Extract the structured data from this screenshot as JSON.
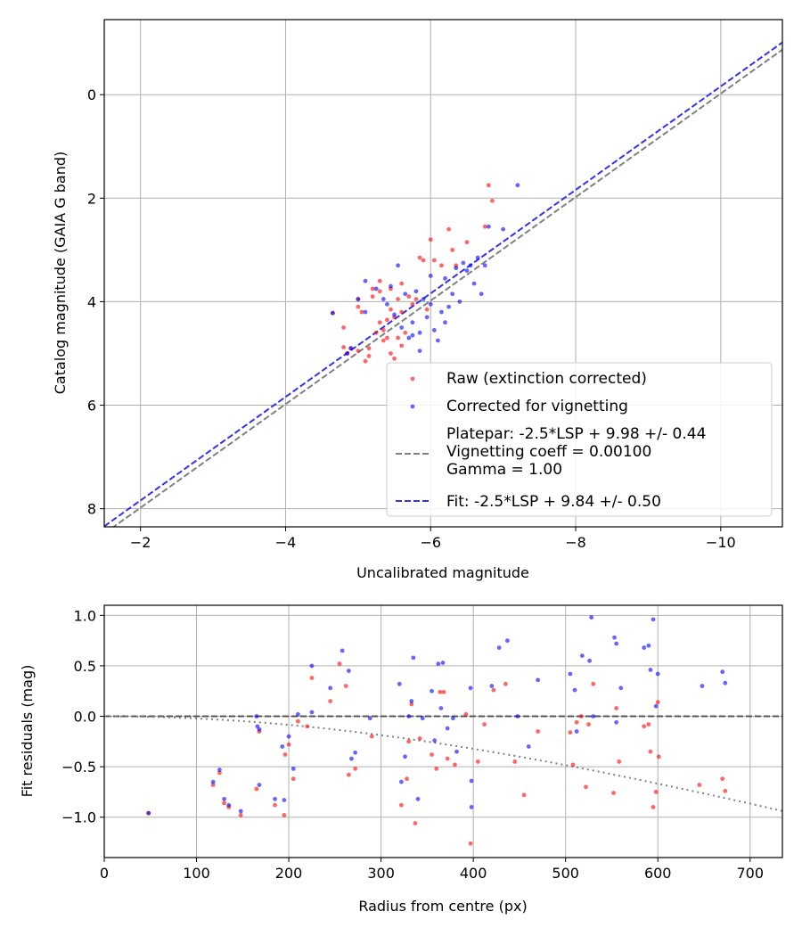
{
  "chart_data": [
    {
      "type": "scatter",
      "xlabel": "Uncalibrated magnitude",
      "ylabel": "Catalog magnitude (GAIA G band)",
      "xlim": [
        -1.5,
        -10.85
      ],
      "ylim": [
        8.35,
        -1.45
      ],
      "x_inverted": true,
      "y_inverted": true,
      "grid": true,
      "legend_position": "lower-right",
      "xticks": [
        -2,
        -4,
        -6,
        -8,
        -10
      ],
      "xtick_labels": [
        "−2",
        "−4",
        "−6",
        "−8",
        "−10"
      ],
      "yticks": [
        0,
        2,
        4,
        6,
        8
      ],
      "ytick_labels": [
        "0",
        "2",
        "4",
        "6",
        "8"
      ],
      "series": [
        {
          "name": "Raw (extinction corrected)",
          "kind": "points",
          "color": "#ff0000",
          "points": [
            [
              -4.65,
              4.22
            ],
            [
              -4.8,
              4.5
            ],
            [
              -4.8,
              4.88
            ],
            [
              -4.85,
              5.0
            ],
            [
              -4.9,
              4.9
            ],
            [
              -5.0,
              4.95
            ],
            [
              -5.0,
              4.1
            ],
            [
              -5.0,
              3.95
            ],
            [
              -5.05,
              4.2
            ],
            [
              -5.1,
              5.15
            ],
            [
              -5.15,
              5.05
            ],
            [
              -5.2,
              3.9
            ],
            [
              -5.2,
              3.75
            ],
            [
              -5.3,
              3.6
            ],
            [
              -5.3,
              3.8
            ],
            [
              -5.3,
              4.4
            ],
            [
              -5.35,
              4.55
            ],
            [
              -5.4,
              4.35
            ],
            [
              -5.4,
              4.7
            ],
            [
              -5.45,
              4.15
            ],
            [
              -5.45,
              3.75
            ],
            [
              -5.5,
              4.3
            ],
            [
              -5.55,
              3.95
            ],
            [
              -5.55,
              4.7
            ],
            [
              -5.6,
              4.2
            ],
            [
              -5.6,
              3.65
            ],
            [
              -5.65,
              4.6
            ],
            [
              -5.7,
              3.9
            ],
            [
              -5.75,
              4.05
            ],
            [
              -5.8,
              3.95
            ],
            [
              -5.85,
              3.15
            ],
            [
              -5.9,
              3.2
            ],
            [
              -6.0,
              2.8
            ],
            [
              -6.05,
              3.2
            ],
            [
              -6.15,
              3.3
            ],
            [
              -6.25,
              2.6
            ],
            [
              -6.3,
              3.0
            ],
            [
              -6.35,
              3.3
            ],
            [
              -6.5,
              2.85
            ],
            [
              -6.75,
              2.55
            ],
            [
              -6.8,
              1.75
            ],
            [
              -6.85,
              2.05
            ],
            [
              -5.25,
              4.6
            ],
            [
              -5.95,
              4.15
            ],
            [
              -5.15,
              4.9
            ],
            [
              -5.35,
              4.75
            ],
            [
              -5.5,
              5.1
            ],
            [
              -5.6,
              4.85
            ],
            [
              -5.45,
              5.0
            ]
          ]
        },
        {
          "name": "Corrected for vignetting",
          "kind": "points",
          "color": "#0000ff",
          "points": [
            [
              -4.65,
              4.22
            ],
            [
              -4.85,
              5.0
            ],
            [
              -4.9,
              4.9
            ],
            [
              -5.0,
              3.95
            ],
            [
              -5.1,
              4.2
            ],
            [
              -5.25,
              3.75
            ],
            [
              -5.35,
              3.95
            ],
            [
              -5.45,
              3.7
            ],
            [
              -5.5,
              4.25
            ],
            [
              -5.6,
              4.5
            ],
            [
              -5.65,
              3.85
            ],
            [
              -5.7,
              4.7
            ],
            [
              -5.75,
              4.4
            ],
            [
              -5.8,
              3.8
            ],
            [
              -5.85,
              4.6
            ],
            [
              -5.9,
              3.95
            ],
            [
              -5.95,
              4.3
            ],
            [
              -6.0,
              4.05
            ],
            [
              -6.05,
              4.55
            ],
            [
              -6.1,
              4.75
            ],
            [
              -6.15,
              4.2
            ],
            [
              -6.2,
              3.55
            ],
            [
              -6.25,
              4.1
            ],
            [
              -6.3,
              3.85
            ],
            [
              -6.35,
              3.35
            ],
            [
              -6.4,
              4.0
            ],
            [
              -6.45,
              3.25
            ],
            [
              -6.5,
              3.4
            ],
            [
              -6.55,
              3.3
            ],
            [
              -6.6,
              3.65
            ],
            [
              -6.65,
              3.15
            ],
            [
              -6.7,
              3.85
            ],
            [
              -6.75,
              3.3
            ],
            [
              -6.8,
              2.55
            ],
            [
              -7.0,
              2.6
            ],
            [
              -7.2,
              1.75
            ],
            [
              -5.55,
              3.3
            ],
            [
              -6.0,
              3.5
            ],
            [
              -5.4,
              4.05
            ],
            [
              -5.75,
              4.65
            ],
            [
              -5.1,
              3.6
            ],
            [
              -5.85,
              4.95
            ],
            [
              -6.2,
              4.4
            ]
          ]
        },
        {
          "name": "Platepar: -2.5*LSP + 9.98 +/- 0.44\nVignetting coeff = 0.00100\nGamma = 1.00",
          "kind": "line",
          "color": "#808080",
          "dash": "dashed",
          "slope": -2.5,
          "intercept": 9.98
        },
        {
          "name": "Fit: -2.5*LSP + 9.84 +/- 0.50",
          "kind": "line",
          "color": "#3333ee",
          "dash": "dashed",
          "slope": -2.5,
          "intercept": 9.84
        }
      ]
    },
    {
      "type": "scatter",
      "xlabel": "Radius from centre (px)",
      "ylabel": "Fit residuals (mag)",
      "xlim": [
        0,
        735
      ],
      "ylim": [
        -1.4,
        1.1
      ],
      "grid": true,
      "xticks": [
        0,
        100,
        200,
        300,
        400,
        500,
        600,
        700
      ],
      "xtick_labels": [
        "0",
        "100",
        "200",
        "300",
        "400",
        "500",
        "600",
        "700"
      ],
      "yticks": [
        -1.0,
        -0.5,
        0.0,
        0.5,
        1.0
      ],
      "ytick_labels": [
        "−1.0",
        "−0.5",
        "0.0",
        "0.5",
        "1.0"
      ],
      "series": [
        {
          "kind": "points",
          "color": "#ff0000",
          "points": [
            [
              48,
              -0.96
            ],
            [
              118,
              -0.68
            ],
            [
              125,
              -0.56
            ],
            [
              130,
              -0.86
            ],
            [
              135,
              -0.9
            ],
            [
              148,
              -0.98
            ],
            [
              165,
              -0.72
            ],
            [
              168,
              -0.15
            ],
            [
              185,
              -0.88
            ],
            [
              195,
              -0.98
            ],
            [
              196,
              -0.38
            ],
            [
              200,
              -0.28
            ],
            [
              205,
              -0.62
            ],
            [
              220,
              -0.1
            ],
            [
              225,
              0.38
            ],
            [
              245,
              0.15
            ],
            [
              255,
              0.52
            ],
            [
              262,
              0.3
            ],
            [
              265,
              -0.58
            ],
            [
              272,
              -0.52
            ],
            [
              290,
              -0.2
            ],
            [
              322,
              -0.88
            ],
            [
              328,
              -0.62
            ],
            [
              333,
              0.12
            ],
            [
              337,
              -1.06
            ],
            [
              342,
              -0.22
            ],
            [
              355,
              -0.38
            ],
            [
              360,
              -0.52
            ],
            [
              364,
              0.24
            ],
            [
              368,
              0.24
            ],
            [
              372,
              -0.42
            ],
            [
              380,
              -0.48
            ],
            [
              392,
              0.02
            ],
            [
              397,
              -1.26
            ],
            [
              405,
              -0.45
            ],
            [
              412,
              -0.08
            ],
            [
              422,
              0.26
            ],
            [
              435,
              0.32
            ],
            [
              445,
              -0.45
            ],
            [
              455,
              -0.78
            ],
            [
              470,
              -0.15
            ],
            [
              505,
              -0.16
            ],
            [
              508,
              -0.48
            ],
            [
              512,
              -0.06
            ],
            [
              517,
              0.0
            ],
            [
              522,
              -0.7
            ],
            [
              525,
              -0.08
            ],
            [
              530,
              0.32
            ],
            [
              552,
              -0.76
            ],
            [
              555,
              0.08
            ],
            [
              558,
              -0.45
            ],
            [
              585,
              -0.1
            ],
            [
              590,
              -0.08
            ],
            [
              592,
              -0.35
            ],
            [
              595,
              -0.9
            ],
            [
              598,
              -0.75
            ],
            [
              600,
              0.14
            ],
            [
              601,
              -0.4
            ],
            [
              645,
              -0.68
            ],
            [
              670,
              -0.62
            ],
            [
              673,
              -0.74
            ],
            [
              330,
              -0.25
            ],
            [
              210,
              -0.05
            ]
          ]
        },
        {
          "kind": "points",
          "color": "#0000ff",
          "points": [
            [
              48,
              -0.96
            ],
            [
              118,
              -0.65
            ],
            [
              125,
              -0.53
            ],
            [
              130,
              -0.82
            ],
            [
              135,
              -0.88
            ],
            [
              148,
              -0.94
            ],
            [
              165,
              0.0
            ],
            [
              166,
              -0.1
            ],
            [
              168,
              -0.13
            ],
            [
              168,
              -0.68
            ],
            [
              185,
              -0.82
            ],
            [
              193,
              -0.3
            ],
            [
              195,
              -0.83
            ],
            [
              200,
              -0.2
            ],
            [
              205,
              -0.52
            ],
            [
              210,
              0.02
            ],
            [
              225,
              0.5
            ],
            [
              225,
              0.04
            ],
            [
              245,
              0.28
            ],
            [
              258,
              0.65
            ],
            [
              265,
              0.45
            ],
            [
              268,
              -0.42
            ],
            [
              272,
              -0.36
            ],
            [
              288,
              -0.02
            ],
            [
              320,
              0.32
            ],
            [
              322,
              -0.65
            ],
            [
              326,
              -0.4
            ],
            [
              330,
              0.0
            ],
            [
              335,
              0.58
            ],
            [
              340,
              -0.82
            ],
            [
              345,
              -0.02
            ],
            [
              355,
              0.25
            ],
            [
              358,
              -0.24
            ],
            [
              362,
              0.52
            ],
            [
              365,
              0.08
            ],
            [
              367,
              0.53
            ],
            [
              372,
              -0.12
            ],
            [
              378,
              -0.02
            ],
            [
              382,
              -0.35
            ],
            [
              398,
              -0.64
            ],
            [
              397,
              0.28
            ],
            [
              398,
              -0.9
            ],
            [
              420,
              0.3
            ],
            [
              428,
              0.68
            ],
            [
              437,
              0.75
            ],
            [
              448,
              0.0
            ],
            [
              460,
              -0.3
            ],
            [
              470,
              0.36
            ],
            [
              505,
              0.42
            ],
            [
              510,
              0.26
            ],
            [
              512,
              -0.15
            ],
            [
              518,
              0.6
            ],
            [
              526,
              0.55
            ],
            [
              528,
              0.98
            ],
            [
              530,
              0.0
            ],
            [
              553,
              0.78
            ],
            [
              555,
              -0.06
            ],
            [
              555,
              0.72
            ],
            [
              560,
              0.28
            ],
            [
              585,
              0.68
            ],
            [
              590,
              0.7
            ],
            [
              592,
              0.46
            ],
            [
              595,
              0.96
            ],
            [
              598,
              0.1
            ],
            [
              600,
              0.42
            ],
            [
              648,
              0.3
            ],
            [
              670,
              0.44
            ],
            [
              673,
              0.33
            ],
            [
              333,
              0.15
            ]
          ]
        },
        {
          "kind": "line",
          "color": "#555555",
          "dash": "dashed",
          "constant": 0.0
        },
        {
          "kind": "curve",
          "color": "#808080",
          "dash": "dotted",
          "vignetting_coeff": 0.001
        }
      ]
    }
  ]
}
